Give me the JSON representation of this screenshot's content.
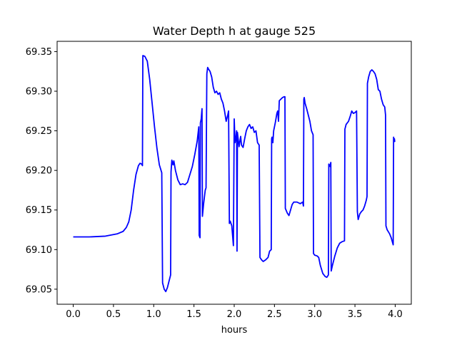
{
  "chart_data": {
    "type": "line",
    "title": "Water Depth h at gauge 525",
    "xlabel": "hours",
    "ylabel": "",
    "xlim": [
      -0.2,
      4.2
    ],
    "ylim": [
      69.031,
      69.363
    ],
    "xticks": [
      0.0,
      0.5,
      1.0,
      1.5,
      2.0,
      2.5,
      3.0,
      3.5,
      4.0
    ],
    "xtick_labels": [
      "0.0",
      "0.5",
      "1.0",
      "1.5",
      "2.0",
      "2.5",
      "3.0",
      "3.5",
      "4.0"
    ],
    "yticks": [
      69.05,
      69.1,
      69.15,
      69.2,
      69.25,
      69.3,
      69.35
    ],
    "ytick_labels": [
      "69.05",
      "69.10",
      "69.15",
      "69.20",
      "69.25",
      "69.30",
      "69.35"
    ],
    "grid": false,
    "series": [
      {
        "color": "#0000ff",
        "points": [
          [
            0.0,
            69.116
          ],
          [
            0.2,
            69.116
          ],
          [
            0.4,
            69.117
          ],
          [
            0.55,
            69.12
          ],
          [
            0.62,
            69.123
          ],
          [
            0.66,
            69.128
          ],
          [
            0.69,
            69.135
          ],
          [
            0.72,
            69.15
          ],
          [
            0.75,
            69.175
          ],
          [
            0.78,
            69.195
          ],
          [
            0.81,
            69.206
          ],
          [
            0.83,
            69.209
          ],
          [
            0.85,
            69.208
          ],
          [
            0.86,
            69.206
          ],
          [
            0.865,
            69.345
          ],
          [
            0.89,
            69.344
          ],
          [
            0.92,
            69.338
          ],
          [
            0.95,
            69.315
          ],
          [
            0.98,
            69.285
          ],
          [
            1.01,
            69.255
          ],
          [
            1.04,
            69.228
          ],
          [
            1.07,
            69.207
          ],
          [
            1.1,
            69.197
          ],
          [
            1.11,
            69.058
          ],
          [
            1.13,
            69.05
          ],
          [
            1.15,
            69.047
          ],
          [
            1.17,
            69.052
          ],
          [
            1.19,
            69.06
          ],
          [
            1.21,
            69.068
          ],
          [
            1.215,
            69.198
          ],
          [
            1.225,
            69.213
          ],
          [
            1.24,
            69.207
          ],
          [
            1.25,
            69.212
          ],
          [
            1.27,
            69.2
          ],
          [
            1.3,
            69.188
          ],
          [
            1.33,
            69.182
          ],
          [
            1.36,
            69.183
          ],
          [
            1.39,
            69.182
          ],
          [
            1.42,
            69.185
          ],
          [
            1.45,
            69.195
          ],
          [
            1.48,
            69.205
          ],
          [
            1.51,
            69.22
          ],
          [
            1.54,
            69.237
          ],
          [
            1.56,
            69.255
          ],
          [
            1.565,
            69.118
          ],
          [
            1.575,
            69.115
          ],
          [
            1.58,
            69.26
          ],
          [
            1.59,
            69.265
          ],
          [
            1.6,
            69.278
          ],
          [
            1.605,
            69.142
          ],
          [
            1.62,
            69.158
          ],
          [
            1.64,
            69.175
          ],
          [
            1.65,
            69.178
          ],
          [
            1.66,
            69.322
          ],
          [
            1.67,
            69.33
          ],
          [
            1.68,
            69.328
          ],
          [
            1.7,
            69.325
          ],
          [
            1.72,
            69.318
          ],
          [
            1.74,
            69.305
          ],
          [
            1.76,
            69.298
          ],
          [
            1.78,
            69.3
          ],
          [
            1.8,
            69.296
          ],
          [
            1.82,
            69.298
          ],
          [
            1.84,
            69.29
          ],
          [
            1.86,
            69.285
          ],
          [
            1.88,
            69.275
          ],
          [
            1.9,
            69.262
          ],
          [
            1.92,
            69.27
          ],
          [
            1.93,
            69.275
          ],
          [
            1.94,
            69.133
          ],
          [
            1.95,
            69.136
          ],
          [
            1.97,
            69.13
          ],
          [
            1.99,
            69.105
          ],
          [
            2.0,
            69.265
          ],
          [
            2.01,
            69.235
          ],
          [
            2.02,
            69.24
          ],
          [
            2.03,
            69.25
          ],
          [
            2.035,
            69.098
          ],
          [
            2.04,
            69.248
          ],
          [
            2.06,
            69.23
          ],
          [
            2.08,
            69.243
          ],
          [
            2.09,
            69.232
          ],
          [
            2.11,
            69.229
          ],
          [
            2.13,
            69.24
          ],
          [
            2.15,
            69.25
          ],
          [
            2.17,
            69.255
          ],
          [
            2.19,
            69.258
          ],
          [
            2.21,
            69.253
          ],
          [
            2.23,
            69.255
          ],
          [
            2.25,
            69.248
          ],
          [
            2.27,
            69.25
          ],
          [
            2.29,
            69.235
          ],
          [
            2.31,
            69.232
          ],
          [
            2.32,
            69.09
          ],
          [
            2.34,
            69.087
          ],
          [
            2.36,
            69.085
          ],
          [
            2.39,
            69.087
          ],
          [
            2.42,
            69.09
          ],
          [
            2.44,
            69.098
          ],
          [
            2.46,
            69.1
          ],
          [
            2.465,
            69.24
          ],
          [
            2.47,
            69.242
          ],
          [
            2.48,
            69.235
          ],
          [
            2.49,
            69.25
          ],
          [
            2.51,
            69.26
          ],
          [
            2.53,
            69.272
          ],
          [
            2.54,
            69.275
          ],
          [
            2.55,
            69.262
          ],
          [
            2.56,
            69.288
          ],
          [
            2.58,
            69.29
          ],
          [
            2.6,
            69.292
          ],
          [
            2.62,
            69.293
          ],
          [
            2.63,
            69.293
          ],
          [
            2.635,
            69.152
          ],
          [
            2.66,
            69.146
          ],
          [
            2.68,
            69.143
          ],
          [
            2.7,
            69.15
          ],
          [
            2.72,
            69.157
          ],
          [
            2.74,
            69.16
          ],
          [
            2.78,
            69.16
          ],
          [
            2.82,
            69.158
          ],
          [
            2.85,
            69.16
          ],
          [
            2.86,
            69.155
          ],
          [
            2.865,
            69.29
          ],
          [
            2.87,
            69.292
          ],
          [
            2.88,
            69.285
          ],
          [
            2.9,
            69.278
          ],
          [
            2.92,
            69.27
          ],
          [
            2.94,
            69.262
          ],
          [
            2.96,
            69.25
          ],
          [
            2.98,
            69.245
          ],
          [
            2.985,
            69.095
          ],
          [
            3.0,
            69.093
          ],
          [
            3.03,
            69.092
          ],
          [
            3.05,
            69.09
          ],
          [
            3.07,
            69.08
          ],
          [
            3.1,
            69.07
          ],
          [
            3.13,
            69.066
          ],
          [
            3.15,
            69.065
          ],
          [
            3.17,
            69.068
          ],
          [
            3.175,
            69.208
          ],
          [
            3.19,
            69.205
          ],
          [
            3.2,
            69.21
          ],
          [
            3.205,
            69.073
          ],
          [
            3.22,
            69.08
          ],
          [
            3.25,
            69.092
          ],
          [
            3.28,
            69.102
          ],
          [
            3.31,
            69.108
          ],
          [
            3.34,
            69.11
          ],
          [
            3.37,
            69.111
          ],
          [
            3.375,
            69.252
          ],
          [
            3.39,
            69.258
          ],
          [
            3.42,
            69.262
          ],
          [
            3.44,
            69.268
          ],
          [
            3.46,
            69.275
          ],
          [
            3.48,
            69.272
          ],
          [
            3.5,
            69.273
          ],
          [
            3.52,
            69.275
          ],
          [
            3.53,
            69.148
          ],
          [
            3.54,
            69.138
          ],
          [
            3.56,
            69.145
          ],
          [
            3.58,
            69.148
          ],
          [
            3.6,
            69.15
          ],
          [
            3.62,
            69.155
          ],
          [
            3.64,
            69.162
          ],
          [
            3.65,
            69.167
          ],
          [
            3.655,
            69.31
          ],
          [
            3.67,
            69.318
          ],
          [
            3.69,
            69.325
          ],
          [
            3.71,
            69.327
          ],
          [
            3.73,
            69.325
          ],
          [
            3.75,
            69.322
          ],
          [
            3.77,
            69.315
          ],
          [
            3.79,
            69.302
          ],
          [
            3.81,
            69.3
          ],
          [
            3.83,
            69.29
          ],
          [
            3.85,
            69.283
          ],
          [
            3.87,
            69.28
          ],
          [
            3.88,
            69.27
          ],
          [
            3.885,
            69.13
          ],
          [
            3.9,
            69.125
          ],
          [
            3.93,
            69.12
          ],
          [
            3.95,
            69.115
          ],
          [
            3.975,
            69.106
          ],
          [
            3.98,
            69.242
          ],
          [
            3.985,
            69.236
          ],
          [
            3.99,
            69.24
          ],
          [
            3.995,
            69.236
          ]
        ]
      }
    ]
  }
}
